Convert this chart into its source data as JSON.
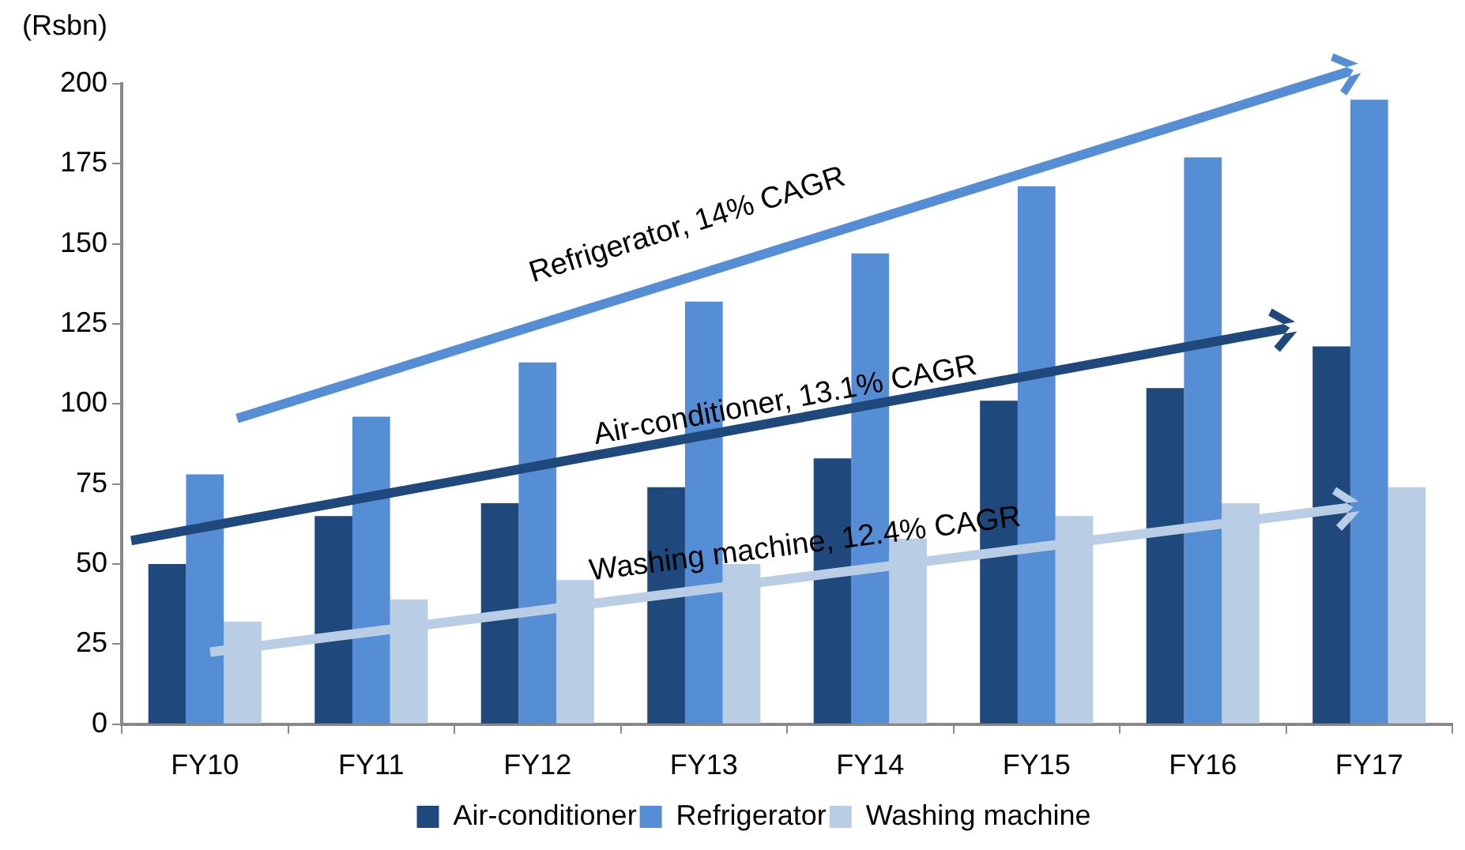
{
  "chart_data": {
    "type": "bar",
    "ylabel": "(Rsbn)",
    "categories": [
      "FY10",
      "FY11",
      "FY12",
      "FY13",
      "FY14",
      "FY15",
      "FY16",
      "FY17"
    ],
    "series": [
      {
        "name": "Air-conditioner",
        "color": "#1f497d",
        "values": [
          50,
          65,
          69,
          74,
          83,
          101,
          105,
          118
        ]
      },
      {
        "name": "Refrigerator",
        "color": "#558ed5",
        "values": [
          78,
          96,
          113,
          132,
          147,
          168,
          177,
          195
        ]
      },
      {
        "name": "Washing machine",
        "color": "#b9cde5",
        "values": [
          32,
          39,
          45,
          50,
          58,
          65,
          69,
          74
        ]
      }
    ],
    "ylim": [
      0,
      200
    ],
    "yticks": [
      0,
      25,
      50,
      75,
      100,
      125,
      150,
      175,
      200
    ],
    "grid": false,
    "legend": "bottom",
    "annotations": [
      "Refrigerator, 14% CAGR",
      "Air-conditioner, 13.1% CAGR",
      "Washing machine, 12.4% CAGR"
    ]
  }
}
